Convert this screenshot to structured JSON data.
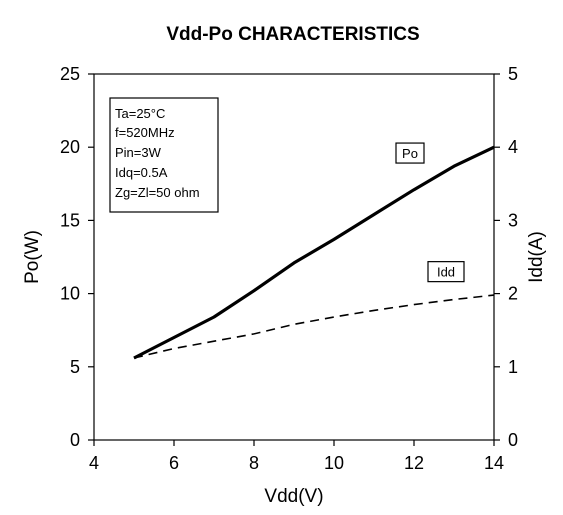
{
  "chart_data": {
    "type": "line",
    "title": "Vdd-Po CHARACTERISTICS",
    "xlabel": "Vdd(V)",
    "ylabel": "Po(W)",
    "y2label": "Idd(A)",
    "xlim": [
      4,
      14
    ],
    "ylim": [
      0,
      25
    ],
    "y2lim": [
      0,
      5
    ],
    "xticks": [
      4,
      6,
      8,
      10,
      12,
      14
    ],
    "yticks": [
      0,
      5,
      10,
      15,
      20,
      25
    ],
    "y2ticks": [
      0,
      1,
      2,
      3,
      4,
      5
    ],
    "grid": false,
    "series": [
      {
        "name": "Po",
        "axis": "left",
        "style": "solid",
        "color": "#000000",
        "x": [
          5,
          6,
          7,
          8,
          9,
          10,
          11,
          12,
          13,
          14
        ],
        "y": [
          5.6,
          7.0,
          8.4,
          10.2,
          12.1,
          13.7,
          15.4,
          17.1,
          18.7,
          20.0
        ]
      },
      {
        "name": "Idd",
        "axis": "right",
        "style": "dashed",
        "color": "#000000",
        "x": [
          5,
          6,
          7,
          8,
          9,
          10,
          11,
          12,
          13,
          14
        ],
        "y": [
          1.12,
          1.25,
          1.35,
          1.45,
          1.58,
          1.68,
          1.77,
          1.85,
          1.92,
          1.98
        ]
      }
    ],
    "series_labels": [
      {
        "text": "Po",
        "x": 11.9,
        "y": 19.6
      },
      {
        "text": "Idd",
        "x": 12.8,
        "y": 11.5
      }
    ],
    "conditions": [
      "Ta=25°C",
      "f=520MHz",
      "Pin=3W",
      "Idq=0.5A",
      "Zg=Zl=50 ohm"
    ]
  }
}
